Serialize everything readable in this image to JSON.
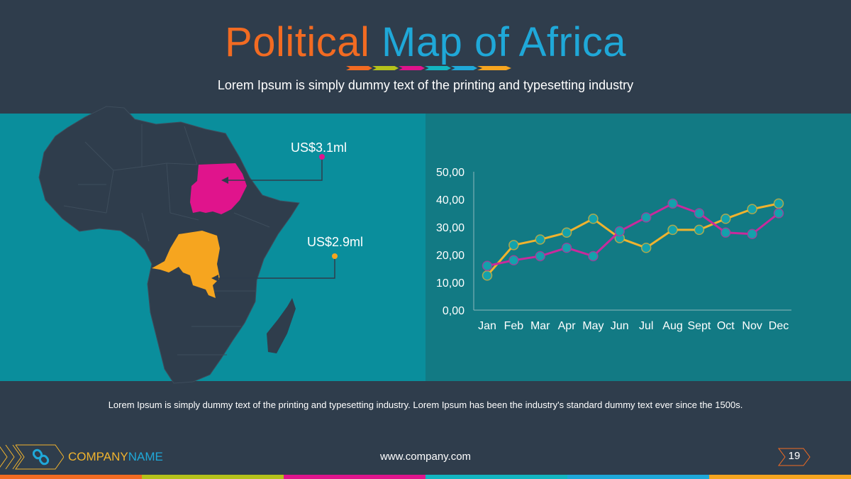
{
  "title": {
    "part1": "Political",
    "part2": "Map of Africa"
  },
  "subtitle": "Lorem Ipsum is simply dummy text of the printing and typesetting industry",
  "colors": {
    "orange": "#f26b22",
    "lime": "#b5c21a",
    "magenta": "#e0148c",
    "teal": "#13b5c0",
    "blue": "#1fa8d8",
    "yellow": "#f6a51f"
  },
  "map": {
    "callouts": [
      {
        "label": "US$3.1ml",
        "country": "Sudan"
      },
      {
        "label": "US$2.9ml",
        "country": "DR Congo"
      }
    ]
  },
  "chart_data": {
    "type": "line",
    "categories": [
      "Jan",
      "Feb",
      "Mar",
      "Apr",
      "May",
      "Jun",
      "Jul",
      "Aug",
      "Sept",
      "Oct",
      "Nov",
      "Dec"
    ],
    "series": [
      {
        "name": "series-yellow",
        "color": "#f0b32e",
        "values": [
          12.5,
          23.5,
          25.5,
          28,
          33,
          26,
          22.5,
          29,
          29,
          33,
          36.5,
          38.5
        ]
      },
      {
        "name": "series-magenta",
        "color": "#c92a9c",
        "values": [
          16,
          18,
          19.5,
          22.5,
          19.5,
          28.5,
          33.5,
          38.5,
          35,
          28,
          27.5,
          35
        ]
      }
    ],
    "yticks": [
      "0,00",
      "10,00",
      "20,00",
      "30,00",
      "40,00",
      "50,00"
    ],
    "ylim": [
      0,
      50
    ],
    "grid": false
  },
  "description": "Lorem Ipsum is simply dummy text of the printing and typesetting industry. Lorem Ipsum has been the industry's standard dummy text ever since the 1500s.",
  "footer": {
    "company1": "COMPANY",
    "company2": "NAME",
    "url": "www.company.com",
    "page": "19"
  }
}
